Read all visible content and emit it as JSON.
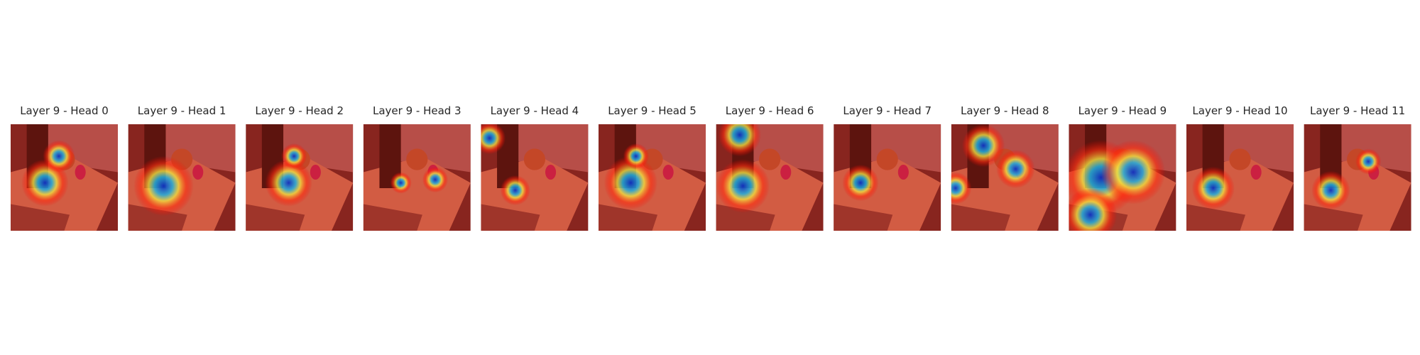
{
  "panels": [
    {
      "title": "Layer 9 - Head 0"
    },
    {
      "title": "Layer 9 - Head 1"
    },
    {
      "title": "Layer 9 - Head 2"
    },
    {
      "title": "Layer 9 - Head 3"
    },
    {
      "title": "Layer 9 - Head 4"
    },
    {
      "title": "Layer 9 - Head 5"
    },
    {
      "title": "Layer 9 - Head 6"
    },
    {
      "title": "Layer 9 - Head 7"
    },
    {
      "title": "Layer 9 - Head 8"
    },
    {
      "title": "Layer 9 - Head 9"
    },
    {
      "title": "Layer 9 - Head 10"
    },
    {
      "title": "Layer 9 - Head 11"
    }
  ]
}
